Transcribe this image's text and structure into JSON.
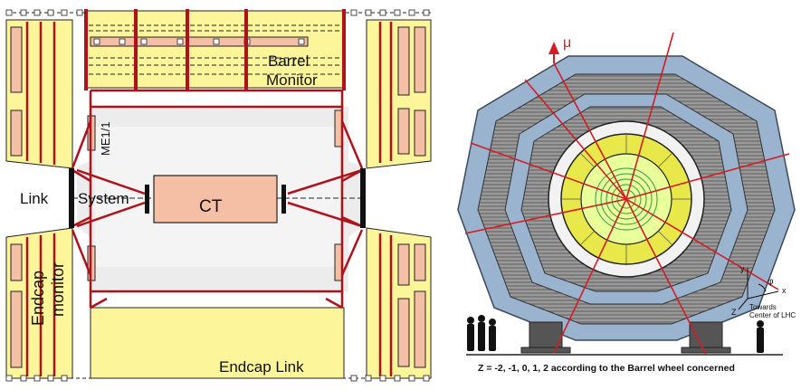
{
  "left_panel": {
    "labels": {
      "barrel_monitor_line1": "Barrel",
      "barrel_monitor_line2": "Monitor",
      "me11": "ME1/1",
      "link": "Link",
      "system": "System",
      "ct": "CT",
      "endcap_monitor_line1": "Endcap",
      "endcap_monitor_line2": "monitor",
      "endcap_link": "Endcap Link"
    }
  },
  "right_panel": {
    "labels": {
      "muon": "μ",
      "caption": "Z = -2, -1, 0, 1, 2 according to the Barrel wheel concerned",
      "axis_y": "y",
      "axis_x": "x",
      "axis_z": "Z",
      "axis_phi": "φ",
      "towards_line1": "Towards",
      "towards_line2": "Center of LHC"
    }
  },
  "colors": {
    "yellow_fill": "#fdf59a",
    "link_red": "#b0121b",
    "salmon": "#f5bfa5",
    "steel_blue": "#9ab3cf",
    "dark_gray": "#4a4a4a",
    "hcal_yellow": "#e8e84a"
  }
}
